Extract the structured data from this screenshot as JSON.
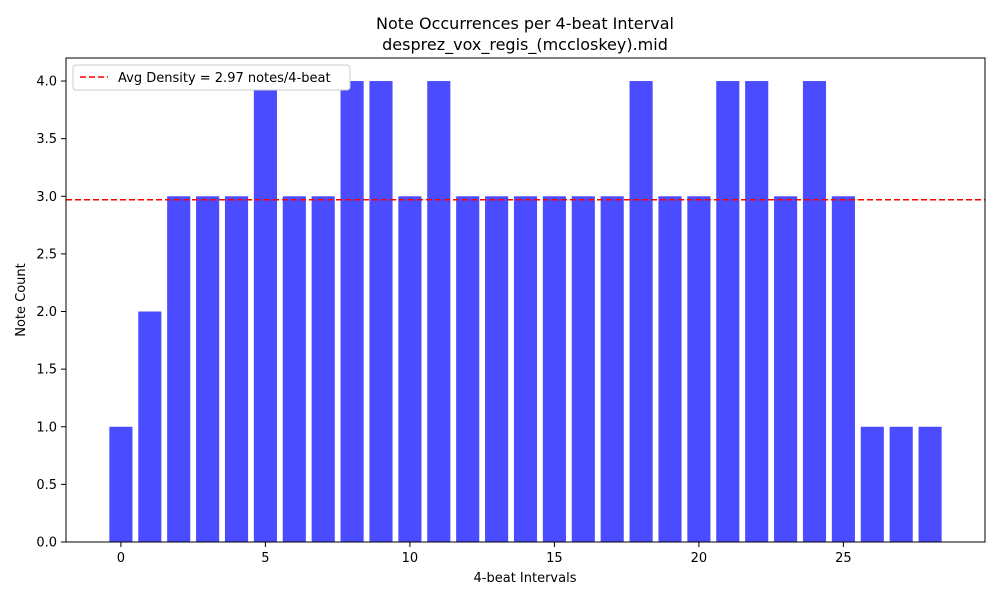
{
  "chart_data": {
    "type": "bar",
    "title": "Note Occurrences per 4-beat Interval",
    "subtitle": "desprez_vox_regis_(mccloskey).mid",
    "xlabel": "4-beat Intervals",
    "ylabel": "Note Count",
    "x": [
      0,
      1,
      2,
      3,
      4,
      5,
      6,
      7,
      8,
      9,
      10,
      11,
      12,
      13,
      14,
      15,
      16,
      17,
      18,
      19,
      20,
      21,
      22,
      23,
      24,
      25,
      26,
      27,
      28
    ],
    "values": [
      1,
      2,
      3,
      3,
      3,
      4,
      3,
      3,
      4,
      4,
      3,
      4,
      3,
      3,
      3,
      3,
      3,
      3,
      4,
      3,
      3,
      4,
      4,
      3,
      4,
      3,
      1,
      1,
      1
    ],
    "xlim": [
      -1.9,
      29.9
    ],
    "ylim": [
      0,
      4.2
    ],
    "xticks": [
      0,
      5,
      10,
      15,
      20,
      25
    ],
    "yticks": [
      0.0,
      0.5,
      1.0,
      1.5,
      2.0,
      2.5,
      3.0,
      3.5,
      4.0
    ],
    "ytick_labels": [
      "0.0",
      "0.5",
      "1.0",
      "1.5",
      "2.0",
      "2.5",
      "3.0",
      "3.5",
      "4.0"
    ],
    "bar_color": "#4b4bff",
    "average_line": {
      "value": 2.97,
      "color": "#ff0000",
      "style": "dashed"
    },
    "legend": {
      "placement": "top-left",
      "entries": [
        "Avg Density = 2.97 notes/4-beat"
      ]
    },
    "grid": false
  }
}
